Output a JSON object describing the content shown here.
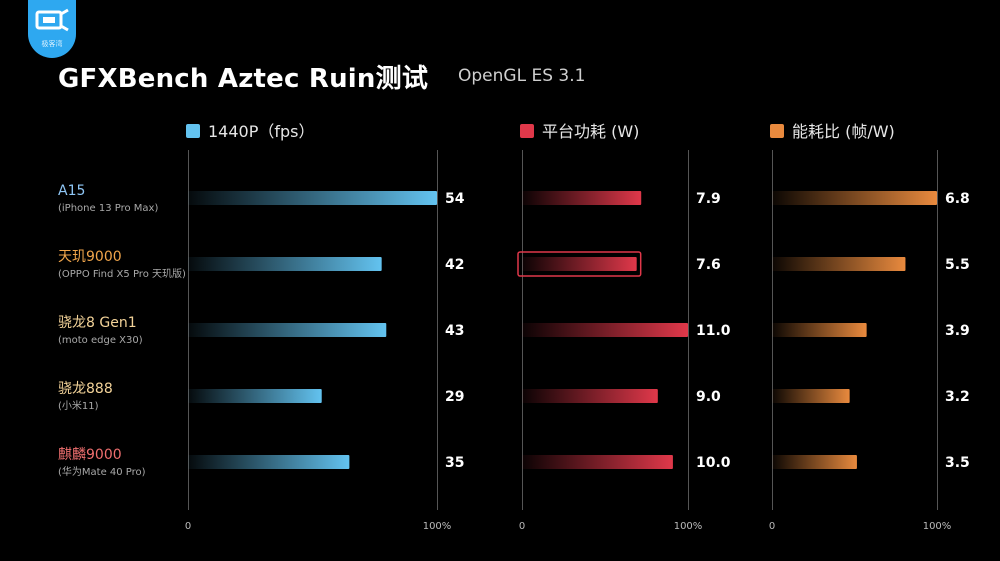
{
  "logo": {
    "icon": "test-bench-logo-icon",
    "text": "极客湾",
    "color": "#2ea8f0"
  },
  "title": "GFXBench Aztec Ruin测试",
  "subtitle": "OpenGL ES 3.1",
  "chart_data": {
    "type": "bar",
    "orientation": "horizontal",
    "devices": [
      {
        "name": "A15",
        "model": "(iPhone 13 Pro Max)",
        "color": "#8fc6f5"
      },
      {
        "name": "天玑9000",
        "model": "(OPPO Find X5 Pro 天玑版)",
        "color": "#f0a54b"
      },
      {
        "name": "骁龙8 Gen1",
        "model": "(moto edge X30)",
        "color": "#f3d399"
      },
      {
        "name": "骁龙888",
        "model": "(小米11)",
        "color": "#f3d399"
      },
      {
        "name": "麒麟9000",
        "model": "(华为Mate 40 Pro)",
        "color": "#ef6f6f"
      }
    ],
    "axis_labels": {
      "min": "0",
      "max": "100%"
    },
    "grid": true,
    "panels": [
      {
        "legend": "1440P（fps）",
        "color": "#63c3f0",
        "max": 54,
        "values": [
          54,
          42,
          43,
          29,
          35
        ],
        "labels": [
          "54",
          "42",
          "43",
          "29",
          "35"
        ]
      },
      {
        "legend": "平台功耗 (W)",
        "color": "#e0384a",
        "max": 11.0,
        "values": [
          7.9,
          7.6,
          11.0,
          9.0,
          10.0
        ],
        "labels": [
          "7.9",
          "7.6",
          "11.0",
          "9.0",
          "10.0"
        ],
        "highlight_index": 1
      },
      {
        "legend": "能耗比 (帧/W)",
        "color": "#e98a3e",
        "max": 6.8,
        "values": [
          6.8,
          5.5,
          3.9,
          3.2,
          3.5
        ],
        "labels": [
          "6.8",
          "5.5",
          "3.9",
          "3.2",
          "3.5"
        ]
      }
    ]
  }
}
